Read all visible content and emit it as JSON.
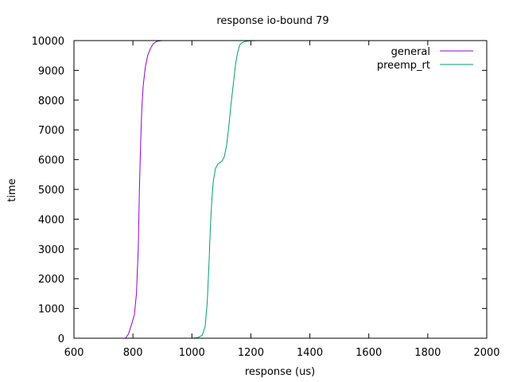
{
  "chart_data": {
    "type": "line",
    "title": "response io-bound 79",
    "xlabel": "response (us)",
    "ylabel": "time",
    "xlim": [
      600,
      2000
    ],
    "ylim": [
      0,
      10000
    ],
    "xticks": [
      "600",
      "800",
      "1000",
      "1200",
      "1400",
      "1600",
      "1800",
      "2000"
    ],
    "yticks": [
      "0",
      "1000",
      "2000",
      "3000",
      "4000",
      "5000",
      "6000",
      "7000",
      "8000",
      "9000",
      "10000"
    ],
    "grid": false,
    "legend_position": "top-right",
    "series": [
      {
        "name": "general",
        "color": "#9400d3",
        "x": [
          775,
          785,
          795,
          805,
          812,
          818,
          822,
          826,
          830,
          835,
          842,
          850,
          860,
          870,
          880,
          890,
          900,
          950,
          1000,
          1100,
          1200,
          1300,
          1420
        ],
        "y": [
          0,
          150,
          450,
          800,
          1500,
          3000,
          5000,
          6500,
          7700,
          8500,
          9100,
          9500,
          9750,
          9900,
          9970,
          9990,
          10000,
          10000,
          10000,
          10000,
          10000,
          10000,
          10000
        ]
      },
      {
        "name": "preemp_rt",
        "color": "#009e73",
        "x": [
          1000,
          1020,
          1035,
          1045,
          1052,
          1058,
          1063,
          1068,
          1073,
          1080,
          1088,
          1095,
          1102,
          1110,
          1118,
          1125,
          1132,
          1140,
          1148,
          1155,
          1162,
          1170,
          1180,
          1195,
          1220,
          1300,
          1400,
          1500,
          1600,
          1675
        ],
        "y": [
          0,
          20,
          100,
          400,
          1200,
          2500,
          3800,
          4700,
          5300,
          5700,
          5850,
          5900,
          5950,
          6100,
          6500,
          7100,
          7800,
          8500,
          9200,
          9600,
          9850,
          9930,
          9970,
          9990,
          10000,
          10000,
          10000,
          10000,
          10000,
          10000
        ]
      }
    ]
  }
}
